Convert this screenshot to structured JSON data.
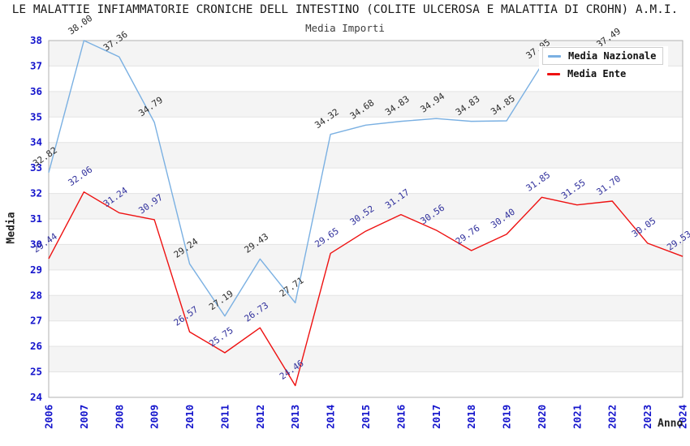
{
  "title": "LE MALATTIE INFIAMMATORIE CRONICHE DELL INTESTINO (COLITE ULCEROSA E MALATTIA DI CROHN) A.M.I.",
  "subtitle": "Media Importi",
  "legend": {
    "items": [
      {
        "label": "Media Nazionale",
        "color": "#7ab0e2"
      },
      {
        "label": "Media Ente",
        "color": "#ee1111"
      }
    ]
  },
  "chart_data": {
    "type": "line",
    "x": [
      2006,
      2007,
      2008,
      2009,
      2010,
      2011,
      2012,
      2013,
      2014,
      2015,
      2016,
      2017,
      2018,
      2019,
      2020,
      2021,
      2022,
      2023,
      2024
    ],
    "series": [
      {
        "name": "Media Nazionale",
        "color": "#7ab0e2",
        "label_color": "#2b2b2b",
        "values": [
          32.82,
          38.0,
          37.36,
          34.79,
          29.24,
          27.19,
          29.43,
          27.71,
          34.32,
          34.68,
          34.83,
          34.94,
          34.83,
          34.85,
          37.05,
          null,
          37.49,
          null,
          null
        ]
      },
      {
        "name": "Media Ente",
        "color": "#ee1111",
        "label_color": "#30309c",
        "values": [
          29.44,
          32.06,
          31.24,
          30.97,
          26.57,
          25.75,
          26.73,
          24.46,
          29.65,
          30.52,
          31.17,
          30.56,
          29.76,
          30.4,
          31.85,
          31.55,
          31.7,
          30.05,
          29.53
        ]
      }
    ],
    "xlabel": "Anno",
    "ylabel": "Media",
    "ylim": [
      24,
      38
    ],
    "ytick_step": 1,
    "tick_label_color": "#1414cc",
    "band_colors": [
      "#ffffff",
      "#f4f4f4"
    ],
    "grid_color": "#e3e3e3",
    "axis_border_color": "#b0b0b0",
    "legend_position": "top-right",
    "value_label_decimals": 2
  }
}
